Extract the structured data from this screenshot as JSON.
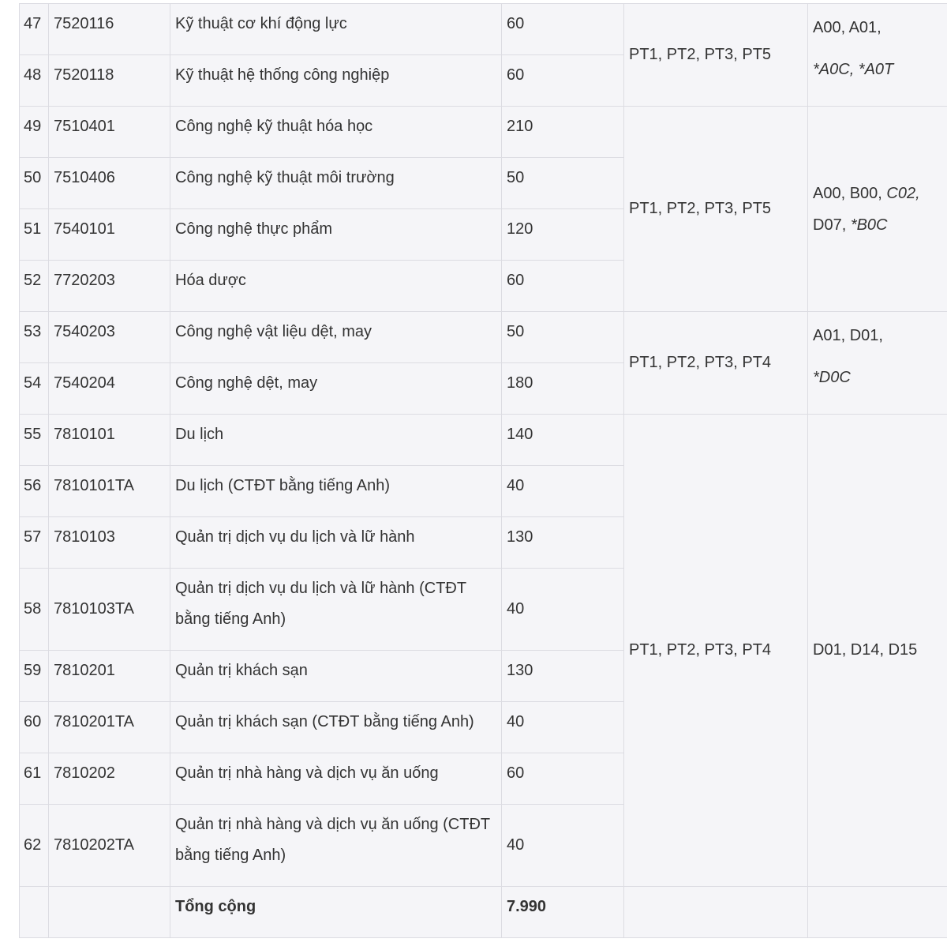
{
  "rows": [
    {
      "no": "47",
      "code": "7520116",
      "name": "Kỹ thuật cơ khí động lực",
      "quota": "60"
    },
    {
      "no": "48",
      "code": "7520118",
      "name": "Kỹ thuật hệ thống công nghiệp",
      "quota": "60"
    },
    {
      "no": "49",
      "code": "7510401",
      "name": "Công nghệ kỹ thuật hóa học",
      "quota": "210"
    },
    {
      "no": "50",
      "code": "7510406",
      "name": "Công nghệ kỹ thuật môi trường",
      "quota": "50"
    },
    {
      "no": "51",
      "code": "7540101",
      "name": "Công nghệ thực phẩm",
      "quota": "120"
    },
    {
      "no": "52",
      "code": "7720203",
      "name": "Hóa dược",
      "quota": "60"
    },
    {
      "no": "53",
      "code": "7540203",
      "name": "Công nghệ vật liệu dệt, may",
      "quota": "50"
    },
    {
      "no": "54",
      "code": "7540204",
      "name": "Công nghệ dệt, may",
      "quota": "180"
    },
    {
      "no": "55",
      "code": "7810101",
      "name": "Du lịch",
      "quota": "140"
    },
    {
      "no": "56",
      "code": "7810101TA",
      "name": "Du lịch (CTĐT bằng tiếng Anh)",
      "quota": "40"
    },
    {
      "no": "57",
      "code": "7810103",
      "name": "Quản trị dịch vụ du lịch và lữ hành",
      "quota": "130"
    },
    {
      "no": "58",
      "code": "7810103TA",
      "name": "Quản trị dịch vụ du lịch và lữ hành (CTĐT bằng tiếng Anh)",
      "quota": "40"
    },
    {
      "no": "59",
      "code": "7810201",
      "name": "Quản trị khách sạn",
      "quota": "130"
    },
    {
      "no": "60",
      "code": "7810201TA",
      "name": "Quản trị khách sạn (CTĐT bằng tiếng Anh)",
      "quota": "40"
    },
    {
      "no": "61",
      "code": "7810202",
      "name": "Quản trị nhà hàng và dịch vụ ăn uống",
      "quota": "60"
    },
    {
      "no": "62",
      "code": "7810202TA",
      "name": "Quản trị nhà hàng và dịch vụ ăn uống (CTĐT bằng tiếng Anh)",
      "quota": "40"
    }
  ],
  "groups": [
    {
      "methods": "PT1, PT2, PT3, PT5",
      "combos_plain": "A00, A01,",
      "combos_italic": "*A0C, *A0T"
    },
    {
      "methods": "PT1, PT2, PT3, PT5",
      "combos_plain": "A00, B00,",
      "combos_italic_1": "C02,",
      "combos_plain_2": "D07,",
      "combos_italic": "*B0C"
    },
    {
      "methods": "PT1, PT2, PT3, PT4",
      "combos_plain": "A01, D01,",
      "combos_italic": "*D0C"
    },
    {
      "methods": "PT1, PT2, PT3, PT4",
      "combos_plain": "D01, D14, D15"
    }
  ],
  "total": {
    "label": "Tổng cộng",
    "value": "7.990"
  }
}
